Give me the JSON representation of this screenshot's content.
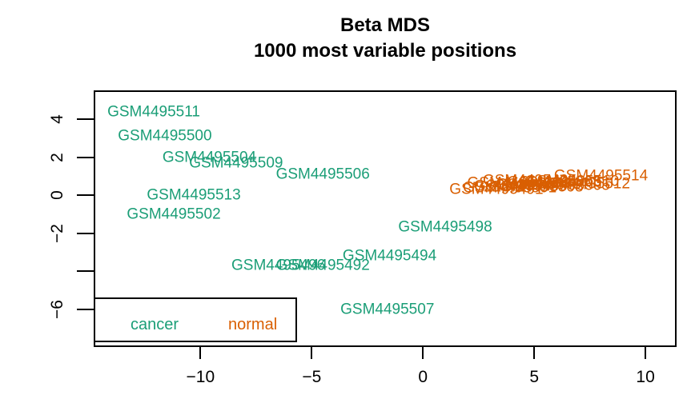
{
  "chart_data": {
    "type": "scatter",
    "title": "Beta MDS",
    "subtitle": "1000 most variable positions",
    "xlabel": "",
    "ylabel": "",
    "xlim": [
      -14.8,
      11.4
    ],
    "ylim": [
      -8.0,
      5.52
    ],
    "grid": false,
    "x_ticks": [
      -10,
      -5,
      0,
      5,
      10
    ],
    "x_tick_labels": [
      "-10",
      "-5",
      "0",
      "5",
      "10"
    ],
    "y_ticks": [
      4,
      2,
      0,
      -2,
      -4,
      -6
    ],
    "y_tick_labels": [
      "4",
      "2",
      "0",
      "-2",
      "",
      "-6"
    ],
    "point_style": "text-label",
    "legend": {
      "position": "bottom-left",
      "items": [
        "cancer",
        "normal"
      ]
    },
    "groups": [
      {
        "name": "cancer",
        "color": "#1B9E77",
        "points": [
          {
            "label": "GSM4495511",
            "x": -12.1,
            "y": 4.4
          },
          {
            "label": "GSM4495500",
            "x": -11.6,
            "y": 3.1
          },
          {
            "label": "GSM4495504",
            "x": -9.6,
            "y": 2.0
          },
          {
            "label": "GSM4495509",
            "x": -8.4,
            "y": 1.7
          },
          {
            "label": "GSM4495506",
            "x": -4.5,
            "y": 1.1
          },
          {
            "label": "GSM4495513",
            "x": -10.3,
            "y": 0.0
          },
          {
            "label": "GSM4495502",
            "x": -11.2,
            "y": -1.0
          },
          {
            "label": "GSM4495498",
            "x": 1.0,
            "y": -1.7
          },
          {
            "label": "GSM4495494",
            "x": -1.5,
            "y": -3.2
          },
          {
            "label": "GSM4495496",
            "x": -6.5,
            "y": -3.7
          },
          {
            "label": "GSM4495492",
            "x": -4.5,
            "y": -3.7
          },
          {
            "label": "GSM4495507",
            "x": -1.6,
            "y": -6.0
          }
        ]
      },
      {
        "name": "normal",
        "color": "#D95F02",
        "points": [
          {
            "label": "GSM4495491",
            "x": 3.3,
            "y": 0.28
          },
          {
            "label": "GSM4495501",
            "x": 3.9,
            "y": 0.38
          },
          {
            "label": "GSM4495499",
            "x": 4.4,
            "y": 0.48
          },
          {
            "label": "GSM4495493",
            "x": 4.1,
            "y": 0.62
          },
          {
            "label": "GSM4495495",
            "x": 4.8,
            "y": 0.75
          },
          {
            "label": "GSM4495508",
            "x": 5.1,
            "y": 0.42
          },
          {
            "label": "GSM4495497",
            "x": 5.4,
            "y": 0.56
          },
          {
            "label": "GSM4495503",
            "x": 5.9,
            "y": 0.66
          },
          {
            "label": "GSM4495505",
            "x": 6.3,
            "y": 0.5
          },
          {
            "label": "GSM4495510",
            "x": 6.7,
            "y": 0.72
          },
          {
            "label": "GSM4495512",
            "x": 7.2,
            "y": 0.6
          },
          {
            "label": "GSM4495514",
            "x": 8.0,
            "y": 1.0
          }
        ]
      }
    ]
  }
}
